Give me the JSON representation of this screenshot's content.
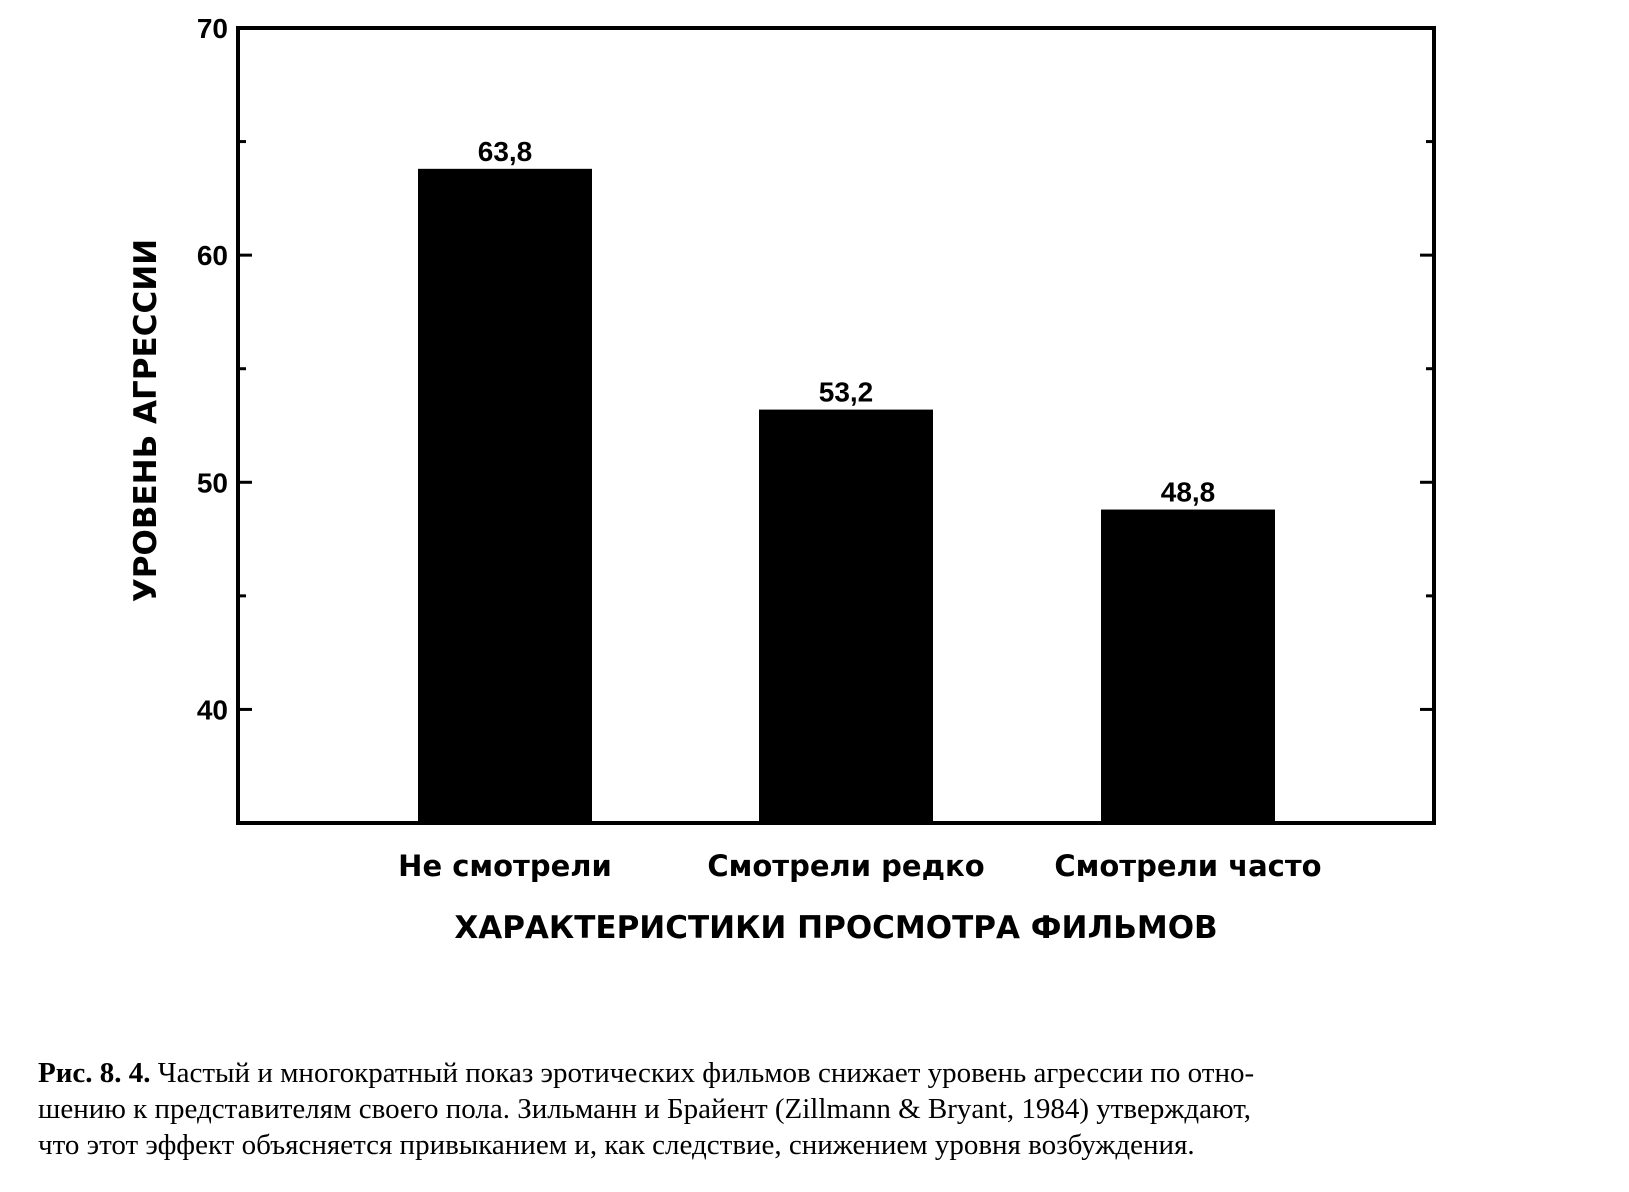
{
  "chart_data": {
    "type": "bar",
    "categories": [
      "Не смотрели",
      "Смотрели редко",
      "Смотрели часто"
    ],
    "values": [
      63.8,
      53.2,
      48.8
    ],
    "value_labels": [
      "63,8",
      "53,2",
      "48,8"
    ],
    "title": "",
    "xlabel": "ХАРАКТЕРИСТИКИ ПРОСМОТРА ФИЛЬМОВ",
    "ylabel": "УРОВЕНЬ АГРЕССИИ",
    "ylim": [
      35,
      70
    ],
    "yticks": [
      40,
      50,
      60,
      70
    ],
    "yticks_labels": [
      "40",
      "50",
      "60",
      "70"
    ],
    "minor_ticks": [
      45,
      55,
      65
    ],
    "grid": false,
    "legend": "none",
    "colors": {
      "bar": "#000000",
      "frame": "#000000",
      "background": "#ffffff"
    }
  },
  "caption": {
    "lead": "Рис. 8. 4.",
    "lines": [
      " Частый и многократный показ эротических фильмов снижает уровень агрессии по отно-",
      "шению  к представителям своего пола. Зильманн и Брайент (Zillmann & Bryant, 1984) утверждают,",
      "что этот эффект объясняется привыканием и, как следствие, снижением уровня возбуждения."
    ]
  }
}
